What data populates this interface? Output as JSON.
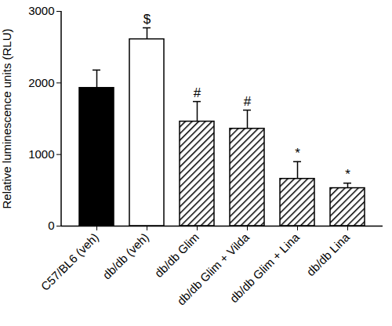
{
  "chart_data": {
    "type": "bar",
    "y_label": "Relative luminescence units (RLU)",
    "categories": [
      "C57/BL6 (veh)",
      "db/db (veh)",
      "db/db Glim",
      "db/db Glim + Vilda",
      "db/db Glim + Lina",
      "db/db Lina"
    ],
    "values": [
      1930,
      2610,
      1460,
      1360,
      660,
      530
    ],
    "errors": [
      250,
      160,
      280,
      260,
      240,
      70
    ],
    "annotations": [
      "",
      "$",
      "#",
      "#",
      "*",
      "*"
    ],
    "colors": [
      "#000000",
      "#ffffff",
      "hatched",
      "hatched",
      "hatched",
      "hatched"
    ],
    "ylim": [
      0,
      3000
    ],
    "yticks": [
      0,
      1000,
      2000,
      3000
    ],
    "grid": false
  }
}
